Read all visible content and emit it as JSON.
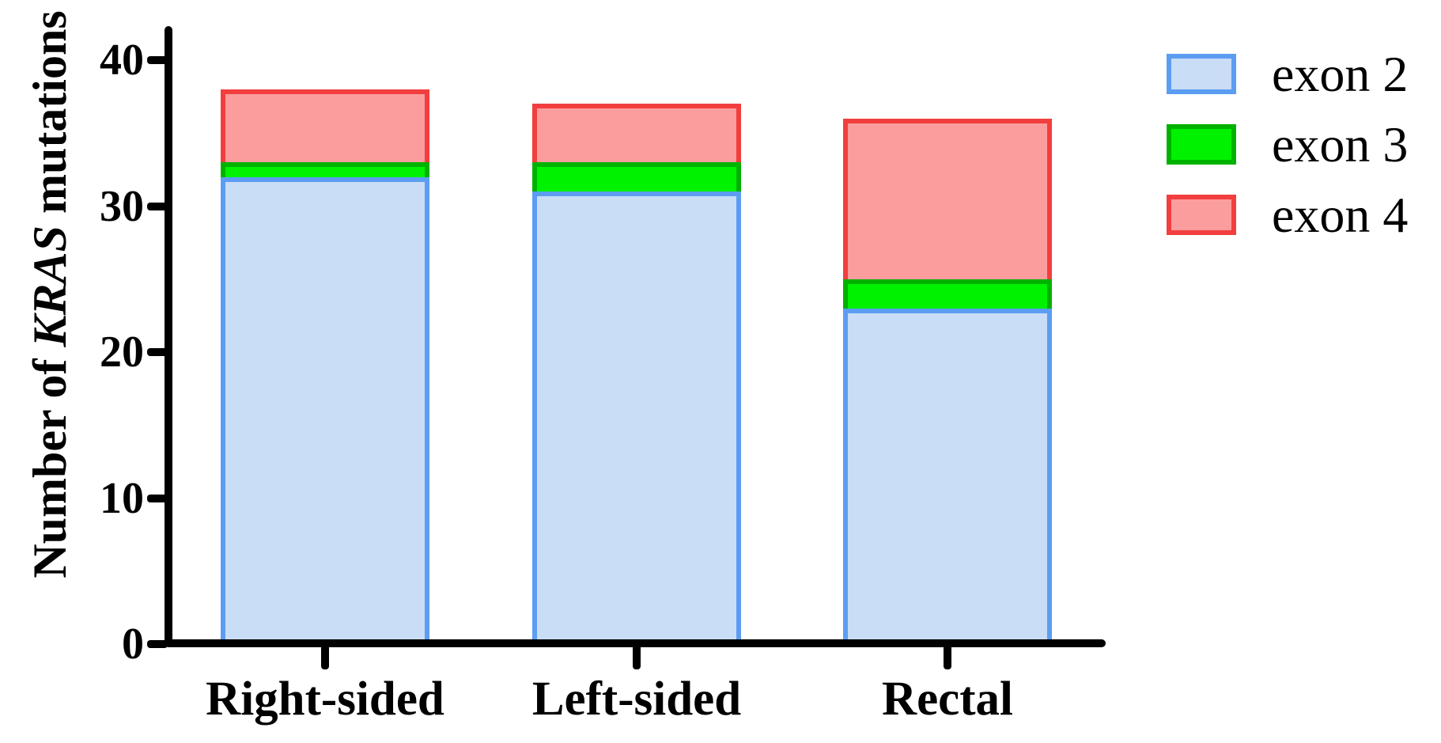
{
  "y_axis": {
    "title_prefix": "Number of ",
    "title_italic": "KRAS",
    "title_suffix": " mutations"
  },
  "chart_data": {
    "type": "bar",
    "stacked": true,
    "categories": [
      "Right-sided",
      "Left-sided",
      "Rectal"
    ],
    "series": [
      {
        "name": "exon 2",
        "values": [
          32,
          31,
          23
        ],
        "fill": "#caddf7",
        "stroke": "#5c9df2"
      },
      {
        "name": "exon 3",
        "values": [
          1,
          2,
          2
        ],
        "fill": "#00f200",
        "stroke": "#00b200"
      },
      {
        "name": "exon 4",
        "values": [
          5,
          4,
          11
        ],
        "fill": "#fc9d9d",
        "stroke": "#f23e3e"
      }
    ],
    "ylabel": "Number of KRAS mutations",
    "yticks": [
      0,
      10,
      20,
      30,
      40
    ],
    "ylim": [
      0,
      40
    ],
    "legend_position": "right",
    "grid": false,
    "axis_color": "#000000"
  }
}
